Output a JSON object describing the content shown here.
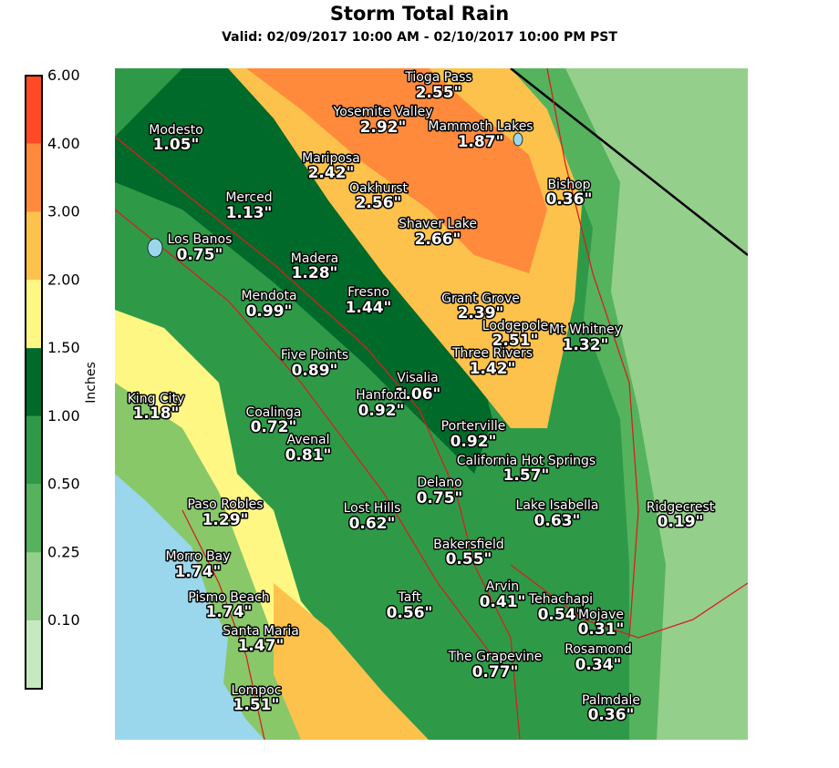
{
  "header": {
    "title": "Storm Total Rain",
    "subtitle": "Valid: 02/09/2017 10:00 AM - 02/10/2017 10:00 PM PST"
  },
  "legend": {
    "title": "Inches",
    "labels": [
      "6.00",
      "4.00",
      "3.00",
      "2.00",
      "1.50",
      "1.00",
      "0.50",
      "0.25",
      "0.10"
    ],
    "colors": [
      "#ff4a25",
      "#ff8a3c",
      "#fdc24c",
      "#fff783",
      "#006a2a",
      "#2e9a48",
      "#55b35e",
      "#95cf8c",
      "#c7e9c0"
    ]
  },
  "stations": [
    {
      "name": "Tioga Pass",
      "amount": "2.55\""
    },
    {
      "name": "Yosemite Valley",
      "amount": "2.92\""
    },
    {
      "name": "Mammoth Lakes",
      "amount": "1.87\""
    },
    {
      "name": "Modesto",
      "amount": "1.05\""
    },
    {
      "name": "Mariposa",
      "amount": "2.42\""
    },
    {
      "name": "Bishop",
      "amount": "0.36\""
    },
    {
      "name": "Oakhurst",
      "amount": "2.56\""
    },
    {
      "name": "Merced",
      "amount": "1.13\""
    },
    {
      "name": "Shaver Lake",
      "amount": "2.66\""
    },
    {
      "name": "Los Banos",
      "amount": "0.75\""
    },
    {
      "name": "Madera",
      "amount": "1.28\""
    },
    {
      "name": "Fresno",
      "amount": "1.44\""
    },
    {
      "name": "Mendota",
      "amount": "0.99\""
    },
    {
      "name": "Grant Grove",
      "amount": "2.39\""
    },
    {
      "name": "Lodgepole",
      "amount": "2.51\""
    },
    {
      "name": "Mt Whitney",
      "amount": "1.32\""
    },
    {
      "name": "Five Points",
      "amount": "0.89\""
    },
    {
      "name": "Three Rivers",
      "amount": "1.42\""
    },
    {
      "name": "Visalia",
      "amount": "1.06\""
    },
    {
      "name": "Hanford",
      "amount": "0.92\""
    },
    {
      "name": "King City",
      "amount": "1.18\""
    },
    {
      "name": "Coalinga",
      "amount": "0.72\""
    },
    {
      "name": "Porterville",
      "amount": "0.92\""
    },
    {
      "name": "Avenal",
      "amount": "0.81\""
    },
    {
      "name": "California Hot Springs",
      "amount": "1.57\""
    },
    {
      "name": "Delano",
      "amount": "0.75\""
    },
    {
      "name": "Paso Robles",
      "amount": "1.29\""
    },
    {
      "name": "Lake Isabella",
      "amount": "0.63\""
    },
    {
      "name": "Ridgecrest",
      "amount": "0.19\""
    },
    {
      "name": "Lost Hills",
      "amount": "0.62\""
    },
    {
      "name": "Bakersfield",
      "amount": "0.55\""
    },
    {
      "name": "Morro Bay",
      "amount": "1.74\""
    },
    {
      "name": "Arvin",
      "amount": "0.41\""
    },
    {
      "name": "Pismo Beach",
      "amount": "1.74\""
    },
    {
      "name": "Taft",
      "amount": "0.56\""
    },
    {
      "name": "Tehachapi",
      "amount": "0.54\""
    },
    {
      "name": "Mojave",
      "amount": "0.31\""
    },
    {
      "name": "Santa Maria",
      "amount": "1.47\""
    },
    {
      "name": "The Grapevine",
      "amount": "0.77\""
    },
    {
      "name": "Rosamond",
      "amount": "0.34\""
    },
    {
      "name": "Lompoc",
      "amount": "1.51\""
    },
    {
      "name": "Palmdale",
      "amount": "0.36\""
    }
  ]
}
